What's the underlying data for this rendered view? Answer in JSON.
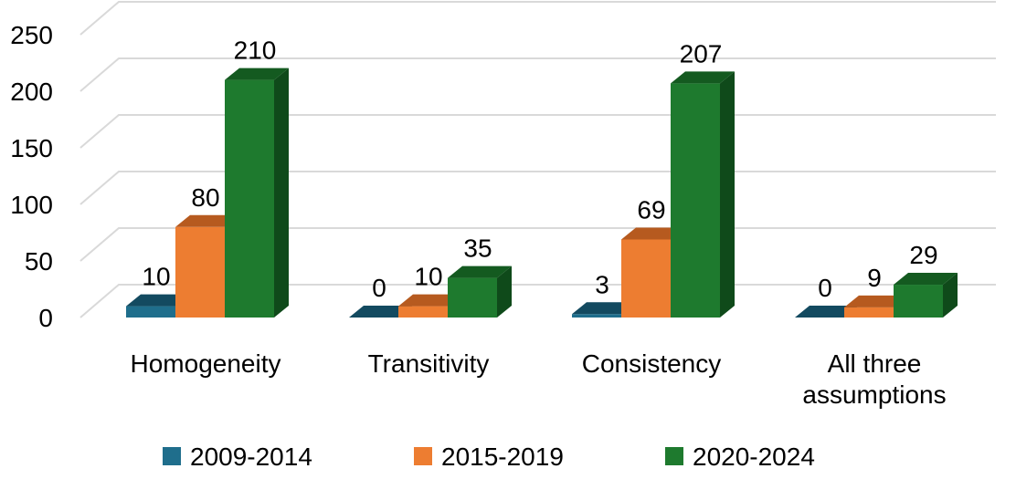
{
  "chart_data": {
    "type": "bar",
    "categories": [
      [
        "Homogeneity"
      ],
      [
        "Transitivity"
      ],
      [
        "Consistency"
      ],
      [
        "All three",
        "assumptions"
      ]
    ],
    "series": [
      {
        "name": "2009-2014",
        "values": [
          10,
          0,
          3,
          0
        ]
      },
      {
        "name": "2015-2019",
        "values": [
          80,
          10,
          69,
          9
        ]
      },
      {
        "name": "2020-2024",
        "values": [
          210,
          35,
          207,
          29
        ]
      }
    ],
    "y_ticks": [
      0,
      50,
      100,
      150,
      200,
      250
    ],
    "ylim": [
      0,
      250
    ],
    "grid": true,
    "legend_position": "bottom",
    "data_labels": true,
    "style": "3d-clustered-column"
  },
  "colors": {
    "series": [
      "#1F6E8C",
      "#ED7D31",
      "#1E7A2E"
    ],
    "series_top": [
      "#134A60",
      "#B65A1F",
      "#145A20"
    ],
    "series_side": [
      "#0F3A4D",
      "#9A4A18",
      "#0F4A1A"
    ],
    "gridline": "#D9D9D9",
    "text": "#000000"
  }
}
